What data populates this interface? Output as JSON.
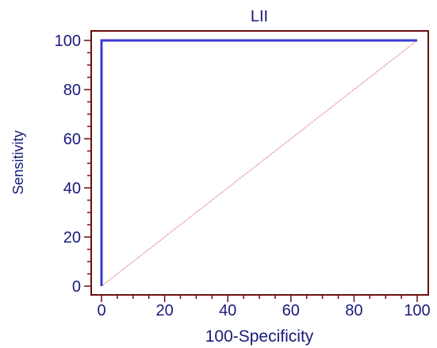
{
  "chart_data": {
    "type": "line",
    "title": "LII",
    "xlabel": "100-Specificity",
    "ylabel": "Sensitivity",
    "xlim": [
      0,
      100
    ],
    "ylim": [
      0,
      100
    ],
    "x_ticks": [
      0,
      20,
      40,
      60,
      80,
      100
    ],
    "y_ticks": [
      0,
      20,
      40,
      60,
      80,
      100
    ],
    "x_tick_labels": [
      "0",
      "20",
      "40",
      "60",
      "80",
      "100"
    ],
    "y_tick_labels": [
      "0",
      "20",
      "40",
      "60",
      "80",
      "100"
    ],
    "grid": false,
    "series": [
      {
        "role": "roc-curve",
        "color": "#3a3ad0",
        "points": [
          [
            0,
            0
          ],
          [
            0,
            100
          ],
          [
            100,
            100
          ]
        ]
      },
      {
        "role": "reference-diagonal",
        "color": "#d04040",
        "style": "dotted",
        "points": [
          [
            0,
            0
          ],
          [
            100,
            100
          ]
        ]
      }
    ],
    "colors": {
      "frame": "#6b0f0f",
      "text": "#1a1a7a",
      "title": "#1a1a7a"
    }
  }
}
